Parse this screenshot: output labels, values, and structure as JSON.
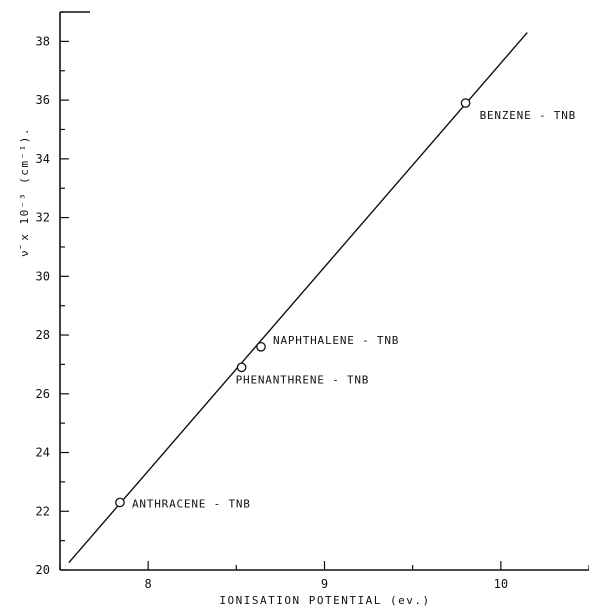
{
  "chart_data": {
    "type": "scatter",
    "title": "",
    "xlabel": "IONISATION POTENTIAL (ev.)",
    "ylabel": "ν̄ x 10⁻³ (cm⁻¹).",
    "xlim": [
      7.5,
      10.5
    ],
    "ylim": [
      20,
      39
    ],
    "x_ticks": [
      8,
      9,
      10
    ],
    "y_ticks": [
      20,
      22,
      24,
      26,
      28,
      30,
      32,
      34,
      36,
      38
    ],
    "grid": false,
    "legend": "none",
    "series": [
      {
        "points": [
          {
            "x": 7.84,
            "y": 22.3,
            "label": "ANTHRACENE - TNB"
          },
          {
            "x": 8.53,
            "y": 26.9,
            "label": "PHENANTHRENE - TNB"
          },
          {
            "x": 8.64,
            "y": 27.6,
            "label": "NAPHTHALENE - TNB"
          },
          {
            "x": 9.8,
            "y": 35.9,
            "label": "BENZENE - TNB"
          }
        ]
      }
    ],
    "fit_line": {
      "x": [
        7.55,
        10.15
      ],
      "y": [
        20.25,
        38.3
      ]
    },
    "colors": {
      "ink": "#111111",
      "background": "#ffffff"
    }
  }
}
